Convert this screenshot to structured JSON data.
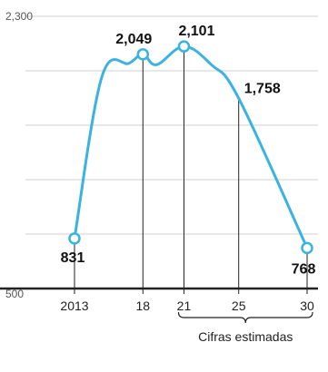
{
  "chart_data": {
    "type": "line",
    "x": [
      2013,
      2015,
      2017,
      2018,
      2019,
      2021,
      2023,
      2025,
      2030
    ],
    "values": [
      831,
      1900,
      1990,
      2049,
      1980,
      2101,
      1980,
      1758,
      768
    ],
    "labeled_points": [
      {
        "x": 2013,
        "y": 831,
        "label": "831"
      },
      {
        "x": 2018,
        "y": 2049,
        "label": "2,049"
      },
      {
        "x": 2021,
        "y": 2101,
        "label": "2,101"
      },
      {
        "x": 2025,
        "y": 1758,
        "label": "1,758"
      },
      {
        "x": 2030,
        "y": 768,
        "label": "768"
      }
    ],
    "circle_markers": [
      2013,
      2018,
      2021,
      2030
    ],
    "drop_lines": [
      2013,
      2018,
      2021,
      2025,
      2030
    ],
    "x_ticks": [
      {
        "x": 2013,
        "label": "2013"
      },
      {
        "x": 2018,
        "label": "18"
      },
      {
        "x": 2021,
        "label": "21"
      },
      {
        "x": 2025,
        "label": "25"
      },
      {
        "x": 2030,
        "label": "30"
      }
    ],
    "y_ticks": [
      {
        "y": 2300,
        "label": "2,300"
      },
      {
        "y": 500,
        "label": "500"
      }
    ],
    "estimated_range": [
      2021,
      2030
    ],
    "estimated_label": "Cifras estimadas",
    "ylim": [
      500,
      2300
    ],
    "xlim": [
      2011,
      2031
    ],
    "grid": true,
    "title": "",
    "xlabel": "",
    "ylabel": "",
    "colors": {
      "line": "#3bb3e0",
      "axis": "#222222",
      "grid": "#d0d0d0",
      "drop": "#222222"
    }
  }
}
